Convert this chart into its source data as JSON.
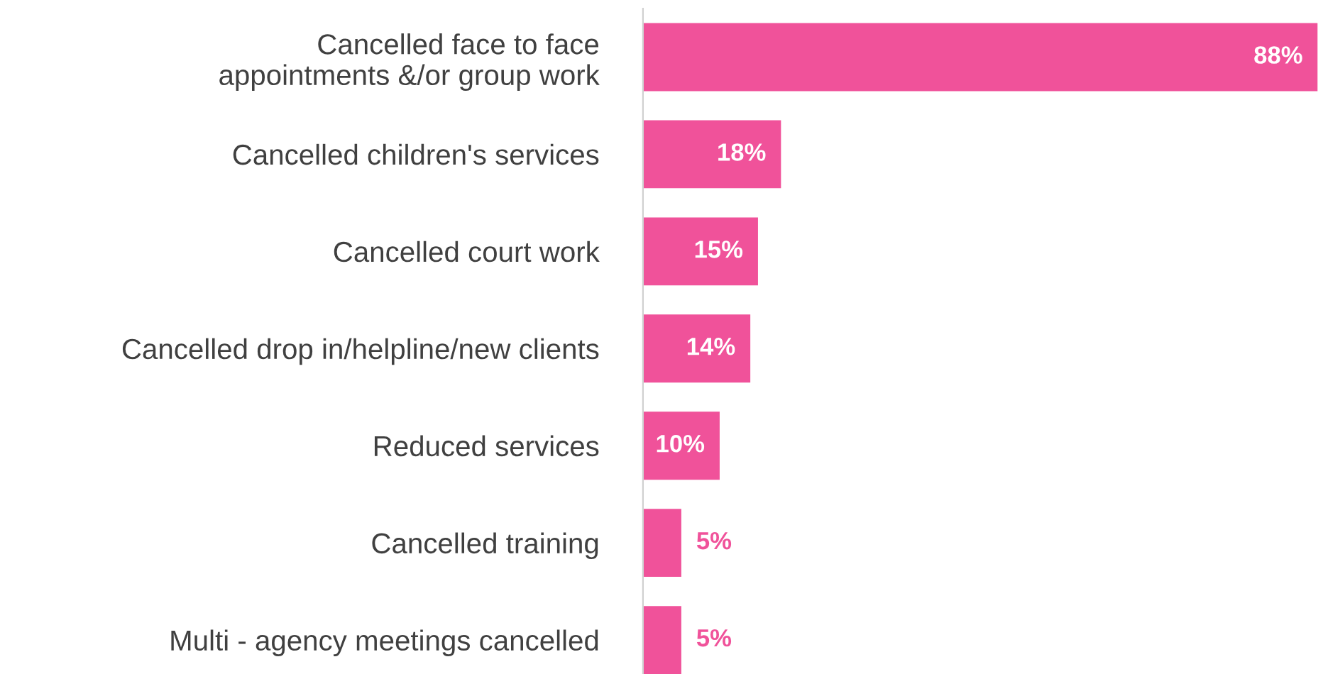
{
  "chart_data": {
    "type": "bar",
    "orientation": "horizontal",
    "categories": [
      "Cancelled face to face\nappointments &/or group work",
      "Cancelled children's services",
      "Cancelled court work",
      "Cancelled drop in/helpline/new clients",
      "Reduced services",
      "Cancelled training",
      "Multi - agency meetings cancelled"
    ],
    "values": [
      88,
      18,
      15,
      14,
      10,
      5,
      5
    ],
    "color": "#f0529a",
    "data_labels": true,
    "value_labels": [
      "88%",
      "18%",
      "15%",
      "14%",
      "10%",
      "5%",
      "5%"
    ],
    "grid": false,
    "legend": false
  }
}
